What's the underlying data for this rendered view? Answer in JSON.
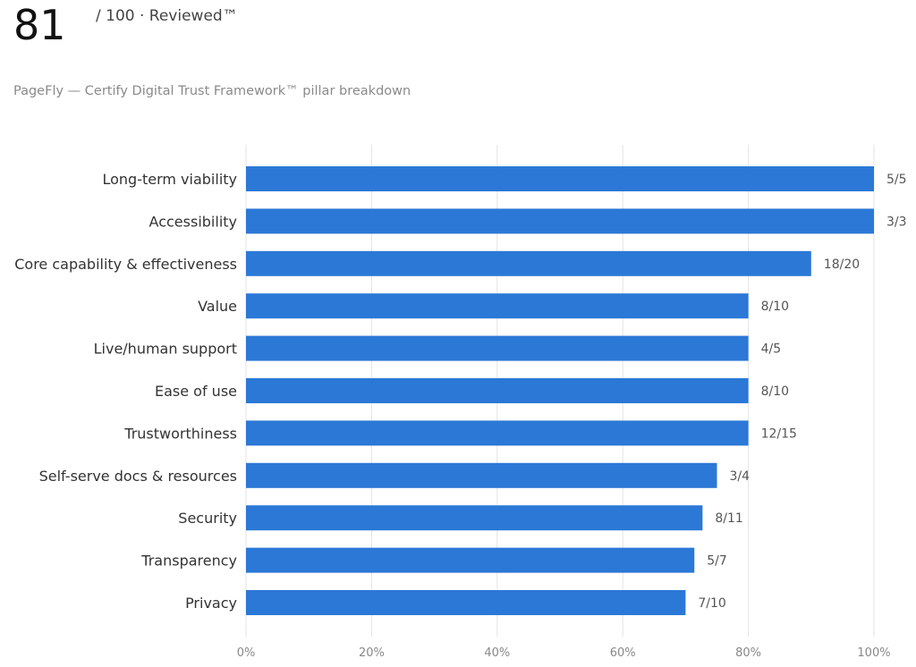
{
  "header": {
    "score": "81",
    "score_suffix": "/ 100 · Reviewed™",
    "subtitle": "PageFly — Certify Digital Trust Framework™ pillar breakdown"
  },
  "colors": {
    "bar": "#2b78d6",
    "grid": "#e3e3e3",
    "category_label": "#333333",
    "value_label": "#555555",
    "tick_label": "#888888"
  },
  "chart_data": {
    "type": "bar",
    "orientation": "horizontal",
    "categories": [
      "Long-term viability",
      "Accessibility",
      "Core capability & effectiveness",
      "Value",
      "Live/human support",
      "Ease of use",
      "Trustworthiness",
      "Self-serve docs & resources",
      "Security",
      "Transparency",
      "Privacy"
    ],
    "values": [
      100,
      100,
      90,
      80,
      80,
      80,
      80,
      75,
      72.7,
      71.4,
      70
    ],
    "data_labels": [
      "5/5",
      "3/3",
      "18/20",
      "8/10",
      "4/5",
      "8/10",
      "12/15",
      "3/4",
      "8/11",
      "5/7",
      "7/10"
    ],
    "xlim": [
      0,
      100
    ],
    "x_ticks": [
      "0%",
      "20%",
      "40%",
      "60%",
      "80%",
      "100%"
    ],
    "grid": true,
    "legend": "none"
  }
}
